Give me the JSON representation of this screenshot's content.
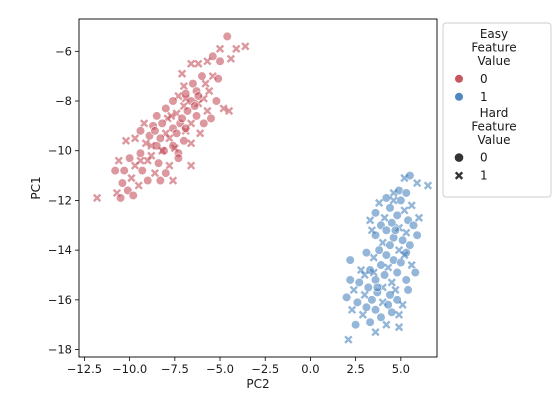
{
  "chart_data": {
    "type": "scatter",
    "xlabel": "PC2",
    "ylabel": "PC1",
    "xlim": [
      -12.8,
      7.0
    ],
    "ylim": [
      -18.3,
      -4.7
    ],
    "x_ticks": [
      -12.5,
      -10.0,
      -7.5,
      -5.0,
      -2.5,
      0.0,
      2.5,
      5.0
    ],
    "x_tick_labels": [
      "−12.5",
      "−10.0",
      "−7.5",
      "−5.0",
      "−2.5",
      "0.0",
      "2.5",
      "5.0"
    ],
    "y_ticks": [
      -18,
      -16,
      -14,
      -12,
      -10,
      -8,
      -6
    ],
    "y_tick_labels": [
      "−18",
      "−16",
      "−14",
      "−12",
      "−10",
      "−8",
      "−6"
    ],
    "grid": false,
    "legend": {
      "placement": "outside-right",
      "hue_title": [
        "Easy",
        "Feature",
        "Value"
      ],
      "hue_entries": [
        {
          "label": "0",
          "color": "#c0444e"
        },
        {
          "label": "1",
          "color": "#3d7ab8"
        }
      ],
      "style_title": [
        "Hard",
        "Feature",
        "Value"
      ],
      "style_entries": [
        {
          "label": "0",
          "marker": "circle"
        },
        {
          "label": "1",
          "marker": "x"
        }
      ]
    },
    "series": [
      {
        "hue": "0",
        "color": "#c0444e",
        "points": [
          [
            -4.6,
            -5.4,
            0
          ],
          [
            -3.6,
            -5.8,
            1
          ],
          [
            -4.1,
            -5.9,
            1
          ],
          [
            -5.0,
            -5.9,
            1
          ],
          [
            -5.4,
            -6.2,
            0
          ],
          [
            -5.7,
            -6.4,
            1
          ],
          [
            -5.0,
            -6.4,
            0
          ],
          [
            -4.4,
            -6.3,
            1
          ],
          [
            -6.2,
            -6.5,
            1
          ],
          [
            -6.6,
            -6.5,
            1
          ],
          [
            -7.1,
            -6.9,
            1
          ],
          [
            -6.0,
            -7.0,
            0
          ],
          [
            -5.4,
            -7.0,
            1
          ],
          [
            -5.1,
            -7.1,
            0
          ],
          [
            -5.8,
            -7.3,
            1
          ],
          [
            -6.5,
            -7.3,
            0
          ],
          [
            -7.0,
            -7.4,
            1
          ],
          [
            -6.3,
            -7.6,
            0
          ],
          [
            -5.6,
            -7.6,
            1
          ],
          [
            -6.9,
            -7.7,
            0
          ],
          [
            -7.3,
            -7.8,
            1
          ],
          [
            -5.9,
            -7.9,
            1
          ],
          [
            -6.6,
            -8.0,
            0
          ],
          [
            -7.6,
            -8.0,
            0
          ],
          [
            -5.2,
            -8.0,
            0
          ],
          [
            -6.2,
            -8.1,
            1
          ],
          [
            -7.0,
            -8.2,
            1
          ],
          [
            -8.0,
            -8.3,
            0
          ],
          [
            -6.8,
            -8.4,
            0
          ],
          [
            -5.7,
            -8.4,
            1
          ],
          [
            -4.8,
            -8.3,
            1
          ],
          [
            -7.4,
            -8.5,
            1
          ],
          [
            -6.3,
            -8.6,
            0
          ],
          [
            -8.5,
            -8.6,
            0
          ],
          [
            -7.9,
            -8.7,
            1
          ],
          [
            -5.5,
            -8.7,
            0
          ],
          [
            -4.5,
            -8.4,
            1
          ],
          [
            -8.2,
            -8.9,
            0
          ],
          [
            -7.2,
            -8.9,
            0
          ],
          [
            -6.6,
            -8.9,
            1
          ],
          [
            -9.2,
            -8.9,
            1
          ],
          [
            -8.7,
            -9.0,
            0
          ],
          [
            -7.6,
            -9.1,
            0
          ],
          [
            -6.9,
            -9.2,
            1
          ],
          [
            -9.4,
            -9.2,
            0
          ],
          [
            -8.0,
            -9.3,
            1
          ],
          [
            -7.4,
            -9.3,
            0
          ],
          [
            -6.1,
            -9.3,
            1
          ],
          [
            -8.9,
            -9.4,
            0
          ],
          [
            -8.3,
            -9.5,
            0
          ],
          [
            -7.8,
            -9.5,
            1
          ],
          [
            -9.7,
            -9.5,
            1
          ],
          [
            -7.0,
            -9.6,
            0
          ],
          [
            -9.1,
            -9.7,
            1
          ],
          [
            -8.5,
            -9.8,
            0
          ],
          [
            -7.6,
            -9.8,
            0
          ],
          [
            -10.2,
            -9.6,
            1
          ],
          [
            -6.6,
            -9.7,
            1
          ],
          [
            -8.1,
            -10.0,
            0
          ],
          [
            -9.4,
            -10.1,
            0
          ],
          [
            -8.8,
            -10.2,
            1
          ],
          [
            -7.3,
            -10.1,
            0
          ],
          [
            -10.0,
            -10.3,
            0
          ],
          [
            -9.0,
            -10.4,
            1
          ],
          [
            -8.4,
            -10.5,
            0
          ],
          [
            -9.7,
            -10.6,
            1
          ],
          [
            -7.8,
            -10.6,
            1
          ],
          [
            -10.3,
            -10.8,
            0
          ],
          [
            -9.3,
            -10.8,
            0
          ],
          [
            -8.6,
            -10.9,
            1
          ],
          [
            -8.0,
            -10.9,
            0
          ],
          [
            -10.8,
            -10.8,
            0
          ],
          [
            -9.9,
            -11.1,
            1
          ],
          [
            -9.0,
            -11.2,
            0
          ],
          [
            -8.3,
            -11.2,
            0
          ],
          [
            -10.4,
            -11.3,
            0
          ],
          [
            -9.5,
            -11.4,
            1
          ],
          [
            -7.6,
            -11.2,
            1
          ],
          [
            -10.1,
            -11.6,
            0
          ],
          [
            -10.7,
            -11.7,
            1
          ],
          [
            -9.8,
            -11.8,
            0
          ],
          [
            -10.5,
            -11.9,
            0
          ],
          [
            -11.8,
            -11.9,
            1
          ],
          [
            -6.6,
            -10.6,
            1
          ],
          [
            -7.3,
            -10.3,
            0
          ],
          [
            -6.9,
            -9.1,
            0
          ],
          [
            -7.7,
            -8.6,
            1
          ],
          [
            -8.6,
            -9.2,
            0
          ],
          [
            -9.4,
            -10.4,
            1
          ],
          [
            -8.8,
            -9.8,
            1
          ],
          [
            -6.4,
            -8.2,
            0
          ],
          [
            -5.9,
            -8.9,
            0
          ],
          [
            -6.9,
            -7.9,
            1
          ],
          [
            -7.5,
            -9.9,
            1
          ],
          [
            -10.6,
            -10.4,
            1
          ],
          [
            -8.2,
            -10.0,
            1
          ],
          [
            -6.2,
            -7.8,
            0
          ],
          [
            -7.1,
            -8.7,
            0
          ]
        ]
      },
      {
        "hue": "1",
        "color": "#3d7ab8",
        "points": [
          [
            5.5,
            -11.0,
            0
          ],
          [
            5.2,
            -11.1,
            1
          ],
          [
            5.9,
            -11.3,
            1
          ],
          [
            4.9,
            -11.6,
            0
          ],
          [
            5.3,
            -11.7,
            0
          ],
          [
            4.6,
            -11.7,
            1
          ],
          [
            4.2,
            -11.9,
            0
          ],
          [
            5.0,
            -12.0,
            0
          ],
          [
            3.8,
            -12.1,
            1
          ],
          [
            5.6,
            -12.2,
            1
          ],
          [
            4.4,
            -12.3,
            0
          ],
          [
            5.2,
            -12.4,
            1
          ],
          [
            3.6,
            -12.5,
            0
          ],
          [
            4.8,
            -12.6,
            0
          ],
          [
            6.0,
            -12.7,
            1
          ],
          [
            4.1,
            -12.7,
            1
          ],
          [
            5.4,
            -12.8,
            0
          ],
          [
            3.3,
            -12.8,
            1
          ],
          [
            4.5,
            -12.9,
            0
          ],
          [
            5.7,
            -13.0,
            0
          ],
          [
            3.9,
            -13.0,
            0
          ],
          [
            4.9,
            -13.1,
            1
          ],
          [
            4.2,
            -13.2,
            0
          ],
          [
            5.3,
            -13.3,
            1
          ],
          [
            3.6,
            -13.4,
            0
          ],
          [
            4.6,
            -13.5,
            0
          ],
          [
            5.1,
            -13.6,
            0
          ],
          [
            4.0,
            -13.7,
            1
          ],
          [
            5.5,
            -13.8,
            0
          ],
          [
            4.4,
            -13.8,
            0
          ],
          [
            3.8,
            -14.0,
            0
          ],
          [
            4.9,
            -14.0,
            1
          ],
          [
            5.3,
            -14.1,
            0
          ],
          [
            4.2,
            -14.2,
            0
          ],
          [
            3.5,
            -14.3,
            1
          ],
          [
            4.6,
            -14.4,
            0
          ],
          [
            5.0,
            -14.5,
            0
          ],
          [
            3.9,
            -14.6,
            0
          ],
          [
            5.6,
            -14.6,
            1
          ],
          [
            4.3,
            -14.7,
            1
          ],
          [
            3.3,
            -14.8,
            0
          ],
          [
            4.8,
            -14.9,
            0
          ],
          [
            5.8,
            -14.9,
            0
          ],
          [
            2.2,
            -14.4,
            0
          ],
          [
            3.0,
            -15.0,
            1
          ],
          [
            4.1,
            -15.0,
            0
          ],
          [
            3.6,
            -15.2,
            0
          ],
          [
            4.5,
            -15.3,
            1
          ],
          [
            2.7,
            -15.3,
            0
          ],
          [
            3.2,
            -15.5,
            0
          ],
          [
            4.0,
            -15.5,
            1
          ],
          [
            2.4,
            -15.6,
            1
          ],
          [
            3.7,
            -15.7,
            0
          ],
          [
            4.4,
            -15.8,
            0
          ],
          [
            3.0,
            -15.8,
            1
          ],
          [
            2.0,
            -15.9,
            0
          ],
          [
            3.4,
            -16.0,
            0
          ],
          [
            4.8,
            -16.0,
            0
          ],
          [
            2.6,
            -16.1,
            0
          ],
          [
            4.0,
            -16.1,
            1
          ],
          [
            3.1,
            -16.3,
            0
          ],
          [
            5.1,
            -16.2,
            1
          ],
          [
            2.3,
            -16.4,
            1
          ],
          [
            3.6,
            -16.4,
            0
          ],
          [
            4.5,
            -16.5,
            0
          ],
          [
            2.9,
            -16.6,
            1
          ],
          [
            3.9,
            -16.7,
            0
          ],
          [
            4.9,
            -16.6,
            1
          ],
          [
            3.3,
            -16.9,
            0
          ],
          [
            2.5,
            -17.0,
            0
          ],
          [
            4.2,
            -17.0,
            1
          ],
          [
            3.6,
            -17.3,
            1
          ],
          [
            4.9,
            -17.1,
            1
          ],
          [
            2.1,
            -17.6,
            1
          ],
          [
            5.3,
            -15.2,
            0
          ],
          [
            3.5,
            -14.9,
            1
          ],
          [
            4.7,
            -13.2,
            0
          ],
          [
            3.1,
            -14.1,
            0
          ],
          [
            5.4,
            -15.6,
            0
          ],
          [
            2.8,
            -14.8,
            1
          ],
          [
            4.3,
            -16.2,
            0
          ],
          [
            6.5,
            -11.4,
            1
          ],
          [
            5.9,
            -13.4,
            0
          ],
          [
            3.4,
            -13.2,
            1
          ],
          [
            4.7,
            -15.6,
            1
          ],
          [
            2.2,
            -15.2,
            0
          ],
          [
            5.2,
            -14.2,
            1
          ],
          [
            3.7,
            -15.5,
            0
          ],
          [
            4.6,
            -12.0,
            1
          ]
        ]
      }
    ]
  }
}
